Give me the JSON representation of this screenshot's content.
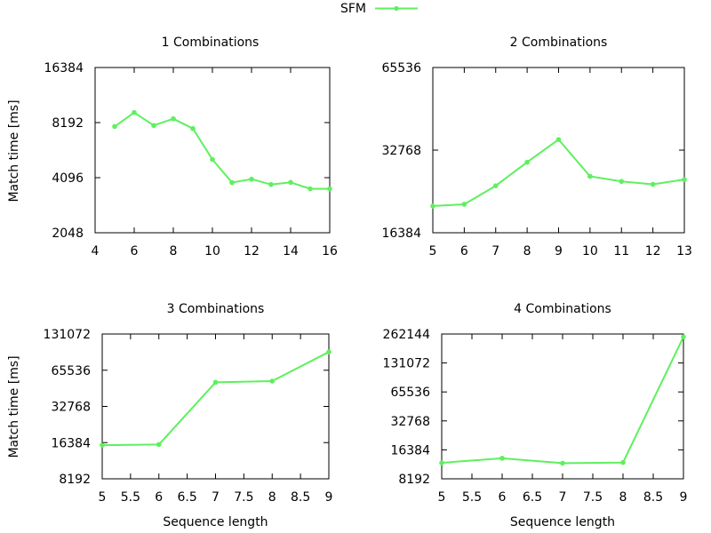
{
  "legend": {
    "label": "SFM",
    "position": "top-center",
    "color": "#5ef05e"
  },
  "colors": {
    "series": "#5ef05e",
    "axis": "#000000"
  },
  "chart_data": [
    {
      "type": "line",
      "title": "1 Combinations",
      "xlabel": "",
      "ylabel": "Match time [ms]",
      "yscale": "log2",
      "xlim": [
        4,
        16
      ],
      "ylim": [
        2048,
        16384
      ],
      "xticks": [
        "4",
        "6",
        "8",
        "10",
        "12",
        "14",
        "16"
      ],
      "xtick_values": [
        4,
        6,
        8,
        10,
        12,
        14,
        16
      ],
      "yticks": [
        "2048",
        "4096",
        "8192",
        "16384"
      ],
      "ytick_values": [
        2048,
        4096,
        8192,
        16384
      ],
      "grid": false,
      "series": [
        {
          "name": "SFM",
          "x": [
            5,
            6,
            7,
            8,
            9,
            10,
            11,
            12,
            13,
            14,
            15,
            16
          ],
          "y": [
            7800,
            9300,
            7900,
            8600,
            7600,
            5150,
            3850,
            4020,
            3760,
            3860,
            3560,
            3560
          ]
        }
      ]
    },
    {
      "type": "line",
      "title": "2 Combinations",
      "xlabel": "",
      "ylabel": "",
      "yscale": "log2",
      "xlim": [
        5,
        13
      ],
      "ylim": [
        16384,
        65536
      ],
      "xticks": [
        "5",
        "6",
        "7",
        "8",
        "9",
        "10",
        "11",
        "12",
        "13"
      ],
      "xtick_values": [
        5,
        6,
        7,
        8,
        9,
        10,
        11,
        12,
        13
      ],
      "yticks": [
        "16384",
        "32768",
        "65536"
      ],
      "ytick_values": [
        16384,
        32768,
        65536
      ],
      "grid": false,
      "series": [
        {
          "name": "SFM",
          "x": [
            5,
            6,
            7,
            8,
            9,
            10,
            11,
            12,
            13
          ],
          "y": [
            20500,
            20800,
            24300,
            29600,
            35800,
            26300,
            25200,
            24600,
            25600
          ]
        }
      ]
    },
    {
      "type": "line",
      "title": "3 Combinations",
      "xlabel": "Sequence length",
      "ylabel": "Match time [ms]",
      "yscale": "log2",
      "xlim": [
        5,
        9
      ],
      "ylim": [
        8192,
        131072
      ],
      "xticks": [
        "5",
        "5.5",
        "6",
        "6.5",
        "7",
        "7.5",
        "8",
        "8.5",
        "9"
      ],
      "xtick_values": [
        5,
        5.5,
        6,
        6.5,
        7,
        7.5,
        8,
        8.5,
        9
      ],
      "yticks": [
        "8192",
        "16384",
        "32768",
        "65536",
        "131072"
      ],
      "ytick_values": [
        8192,
        16384,
        32768,
        65536,
        131072
      ],
      "grid": false,
      "series": [
        {
          "name": "SFM",
          "x": [
            5,
            6,
            7,
            8,
            9
          ],
          "y": [
            15600,
            15800,
            52000,
            53200,
            93000
          ]
        }
      ]
    },
    {
      "type": "line",
      "title": "4 Combinations",
      "xlabel": "Sequence length",
      "ylabel": "",
      "yscale": "log2",
      "xlim": [
        5,
        9
      ],
      "ylim": [
        8192,
        262144
      ],
      "xticks": [
        "5",
        "5.5",
        "6",
        "6.5",
        "7",
        "7.5",
        "8",
        "8.5",
        "9"
      ],
      "xtick_values": [
        5,
        5.5,
        6,
        6.5,
        7,
        7.5,
        8,
        8.5,
        9
      ],
      "yticks": [
        "8192",
        "16384",
        "32768",
        "65536",
        "131072",
        "262144"
      ],
      "ytick_values": [
        8192,
        16384,
        32768,
        65536,
        131072,
        262144
      ],
      "grid": false,
      "series": [
        {
          "name": "SFM",
          "x": [
            5,
            6,
            7,
            8,
            9
          ],
          "y": [
            12000,
            13400,
            11900,
            12100,
            245000
          ]
        }
      ]
    }
  ]
}
